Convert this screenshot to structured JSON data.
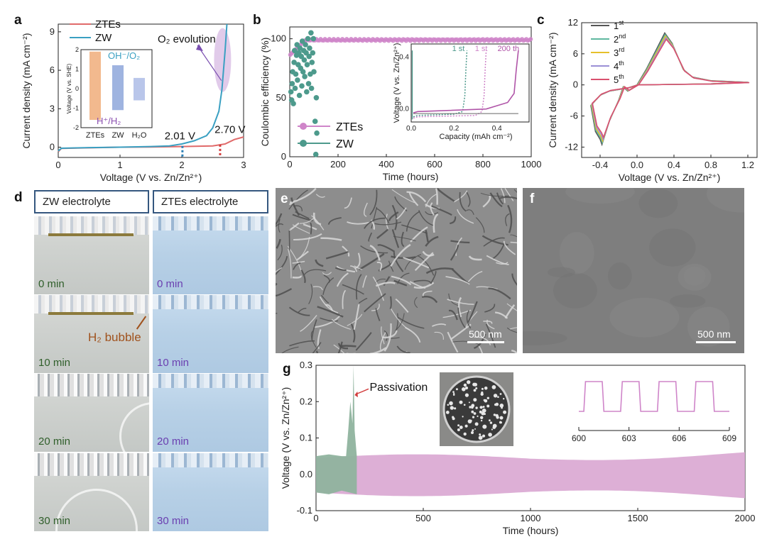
{
  "panel_labels": {
    "a": "a",
    "b": "b",
    "c": "c",
    "d": "d",
    "e": "e",
    "f": "f",
    "g": "g"
  },
  "colors": {
    "ztes": "#e06a6a",
    "zw": "#3aa0c2",
    "ztes_b": "#cf85c9",
    "zw_b": "#4d9a8c",
    "pink_fill": "#d9a6d2",
    "green_fill": "#8fb39e",
    "frame": "#35577f",
    "blue_cell": "#b8d3e8",
    "grey_cell": "#c9ccc9"
  },
  "chart_data": [
    {
      "id": "a",
      "type": "line",
      "xlabel": "Voltage (V vs. Zn/Zn²⁺)",
      "ylabel": "Current density (mA cm⁻²)",
      "xlim": [
        0,
        3
      ],
      "ylim": [
        -0.8,
        9.6
      ],
      "xticks": [
        "0",
        "1",
        "2",
        "3"
      ],
      "yticks": [
        "0",
        "3",
        "6",
        "9"
      ],
      "series": [
        {
          "name": "ZTEs",
          "color": "#e06a6a",
          "points": [
            [
              0,
              -0.35
            ],
            [
              0.05,
              -0.1
            ],
            [
              0.5,
              -0.05
            ],
            [
              1,
              0
            ],
            [
              1.5,
              0.02
            ],
            [
              2,
              0.05
            ],
            [
              2.5,
              0.1
            ],
            [
              2.7,
              0.25
            ],
            [
              2.85,
              0.6
            ],
            [
              3,
              0.8
            ]
          ]
        },
        {
          "name": "ZW",
          "color": "#3aa0c2",
          "points": [
            [
              0,
              -0.3
            ],
            [
              0.05,
              -0.08
            ],
            [
              0.5,
              -0.03
            ],
            [
              1,
              0
            ],
            [
              1.5,
              0.05
            ],
            [
              1.8,
              0.1
            ],
            [
              2,
              0.25
            ],
            [
              2.2,
              0.5
            ],
            [
              2.4,
              0.9
            ],
            [
              2.5,
              1.5
            ],
            [
              2.6,
              2.8
            ],
            [
              2.65,
              4.5
            ],
            [
              2.7,
              7.5
            ],
            [
              2.73,
              9.6
            ]
          ]
        }
      ],
      "annotations": {
        "o2": "O₂ evolution",
        "v1": "2.01 V",
        "v2": "2.70 V"
      },
      "inset": {
        "type": "bar",
        "ylabel": "Voltage (V vs. SHE)",
        "ylim": [
          -2,
          2
        ],
        "yticks": [
          "2",
          "1",
          "0",
          "-1",
          "-2"
        ],
        "categories": [
          "ZTEs",
          "ZW",
          "H₂O"
        ],
        "bars": [
          {
            "low": -1.6,
            "high": 1.9,
            "color": "#f2b98e"
          },
          {
            "low": -1.1,
            "high": 1.2,
            "color": "#9fb4e0"
          },
          {
            "low": -0.6,
            "high": 0.55,
            "color": "#b9c6ea"
          }
        ],
        "top_label": "OH⁻/O₂",
        "bottom_label": "H⁺/H₂"
      }
    },
    {
      "id": "b",
      "type": "scatter",
      "xlabel": "Time (hours)",
      "ylabel": "Coulombic efficiency (%)",
      "xlim": [
        0,
        1000
      ],
      "ylim": [
        0,
        110
      ],
      "xticks": [
        "0",
        "200",
        "400",
        "600",
        "800",
        "1000"
      ],
      "yticks": [
        "0",
        "50",
        "100"
      ],
      "series": [
        {
          "name": "ZTEs",
          "color": "#cf85c9"
        },
        {
          "name": "ZW",
          "color": "#4d9a8c"
        }
      ],
      "zw_points": [
        [
          5,
          55
        ],
        [
          8,
          48
        ],
        [
          10,
          62
        ],
        [
          12,
          72
        ],
        [
          15,
          45
        ],
        [
          18,
          80
        ],
        [
          20,
          90
        ],
        [
          22,
          58
        ],
        [
          25,
          70
        ],
        [
          28,
          86
        ],
        [
          30,
          95
        ],
        [
          32,
          65
        ],
        [
          35,
          78
        ],
        [
          38,
          88
        ],
        [
          40,
          52
        ],
        [
          42,
          92
        ],
        [
          45,
          75
        ],
        [
          48,
          85
        ],
        [
          50,
          60
        ],
        [
          52,
          98
        ],
        [
          55,
          72
        ],
        [
          58,
          90
        ],
        [
          60,
          82
        ],
        [
          62,
          68
        ],
        [
          65,
          95
        ],
        [
          68,
          88
        ],
        [
          70,
          55
        ],
        [
          72,
          78
        ],
        [
          75,
          100
        ],
        [
          78,
          62
        ],
        [
          80,
          85
        ],
        [
          82,
          92
        ],
        [
          85,
          70
        ],
        [
          88,
          105
        ],
        [
          90,
          58
        ],
        [
          92,
          80
        ],
        [
          95,
          88
        ],
        [
          98,
          100
        ],
        [
          100,
          72
        ],
        [
          105,
          30
        ],
        [
          108,
          2
        ],
        [
          110,
          50
        ],
        [
          112,
          20
        ]
      ],
      "inset": {
        "xlabel": "Capacity (mAh cm⁻²)",
        "ylabel": "Voltage (V vs. Zn/Zn²⁺)",
        "xlim": [
          0,
          0.55
        ],
        "ylim": [
          -0.1,
          0.5
        ],
        "xticks": [
          "0.0",
          "0.2",
          "0.4"
        ],
        "yticks": [
          "0.0",
          "0.4"
        ],
        "labels": [
          "1 st",
          "1 st",
          "200 th"
        ]
      }
    },
    {
      "id": "c",
      "type": "line",
      "xlabel": "Voltage (V vs. Zn/Zn²⁺)",
      "ylabel": "Current density (mA cm⁻²)",
      "xlim": [
        -0.6,
        1.3
      ],
      "ylim": [
        -14,
        12
      ],
      "xticks": [
        "-0.4",
        "0.0",
        "0.4",
        "0.8",
        "1.2"
      ],
      "yticks": [
        "12",
        "6",
        "0",
        "-6",
        "-12"
      ],
      "series": [
        {
          "name": "1st",
          "label_main": "1",
          "label_sup": "st",
          "color": "#555555"
        },
        {
          "name": "2nd",
          "label_main": "2",
          "label_sup": "nd",
          "color": "#5fb8a0"
        },
        {
          "name": "3rd",
          "label_main": "3",
          "label_sup": "rd",
          "color": "#e6c02a"
        },
        {
          "name": "4th",
          "label_main": "4",
          "label_sup": "th",
          "color": "#9b8fd6"
        },
        {
          "name": "5th",
          "label_main": "5",
          "label_sup": "th",
          "color": "#d9506e"
        }
      ],
      "cv_points": [
        [
          -0.4,
          -10.5
        ],
        [
          -0.45,
          -9
        ],
        [
          -0.5,
          -4
        ],
        [
          -0.4,
          -2
        ],
        [
          -0.3,
          -1.2
        ],
        [
          -0.1,
          -0.6
        ],
        [
          0,
          0
        ],
        [
          0.1,
          3
        ],
        [
          0.2,
          6.5
        ],
        [
          0.3,
          10
        ],
        [
          0.38,
          8
        ],
        [
          0.5,
          3
        ],
        [
          0.6,
          1.5
        ],
        [
          0.8,
          0.8
        ],
        [
          1.2,
          0.5
        ],
        [
          0.8,
          0.2
        ],
        [
          0.4,
          0.1
        ],
        [
          0,
          0
        ],
        [
          -0.1,
          -1.2
        ],
        [
          -0.15,
          -0.4
        ],
        [
          -0.2,
          -3
        ],
        [
          -0.3,
          -7
        ],
        [
          -0.38,
          -11.5
        ],
        [
          -0.4,
          -10.5
        ]
      ]
    },
    {
      "id": "g",
      "type": "area",
      "xlabel": "Time (hours)",
      "ylabel": "Voltage (V vs. Zn/Zn²⁺)",
      "xlim": [
        0,
        2000
      ],
      "ylim": [
        -0.1,
        0.3
      ],
      "xticks": [
        "0",
        "500",
        "1000",
        "1500",
        "2000"
      ],
      "yticks": [
        "0.3",
        "0.2",
        "0.1",
        "0.0",
        "-0.1"
      ],
      "annotation": "Passivation",
      "inset": {
        "xticks": [
          "600",
          "603",
          "606",
          "609"
        ]
      }
    }
  ],
  "photos": {
    "headers": [
      "ZW electrolyte",
      "ZTEs electrolyte"
    ],
    "times": [
      "0 min",
      "10 min",
      "20 min",
      "30 min"
    ],
    "bubble": "H₂ bubble"
  },
  "sem": {
    "scale_e": "500 nm",
    "scale_f": "500 nm"
  }
}
